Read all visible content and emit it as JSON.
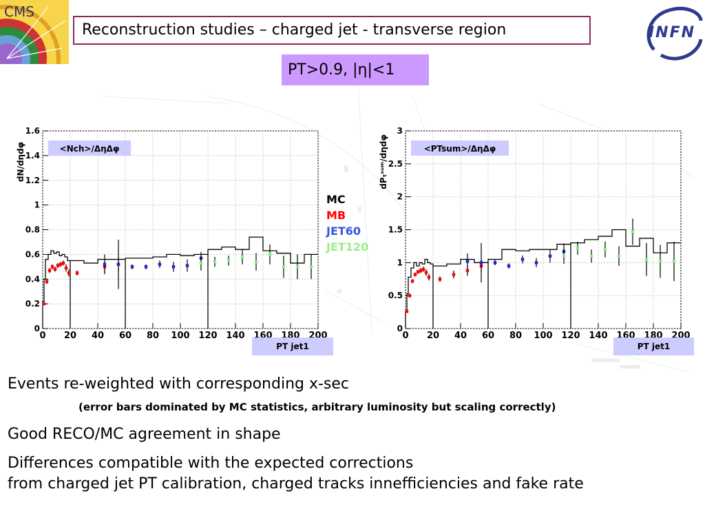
{
  "title": "Reconstruction studies – charged jet - transverse region",
  "cut_label": "PT>0.9, |η|<1",
  "logos": {
    "left": "CMS",
    "right": "INFN"
  },
  "legend": {
    "mc": "MC",
    "mb": "MB",
    "jet60": "JET60",
    "jet120": "JET120"
  },
  "colors": {
    "mc": "#000000",
    "mb": "#ff0000",
    "jet60": "#2222cc",
    "jet120": "#88ee88",
    "title_border": "#8a2a5a",
    "cut_bg": "#cc99ff",
    "tag_bg": "#ccccff"
  },
  "texts": {
    "line1": "Events re-weighted with corresponding x-sec",
    "line2": "(error bars dominated by MC statistics, arbitrary luminosity but scaling correctly)",
    "line3": "Good RECO/MC  agreement in shape",
    "line4": "Differences compatible with the expected corrections",
    "line5": "from charged jet PT calibration, charged tracks innefficiencies and fake rate"
  },
  "chart_data": [
    {
      "type": "histogram+errorbars",
      "inner_label": "<Nch>/ΔηΔφ",
      "ylabel": "dN/dηdφ",
      "xlabel": "PT jet1",
      "xlim": [
        0,
        200
      ],
      "ylim": [
        0,
        1.6
      ],
      "xticks": [
        0,
        20,
        40,
        60,
        80,
        100,
        120,
        140,
        160,
        180,
        200
      ],
      "yticks": [
        0,
        0.2,
        0.4,
        0.6,
        0.8,
        1,
        1.2,
        1.4,
        1.6
      ],
      "grid": true,
      "mc_hist": {
        "edges": [
          0,
          1,
          2,
          4,
          6,
          8,
          10,
          12,
          14,
          16,
          18,
          20,
          30,
          40,
          50,
          60,
          70,
          80,
          90,
          100,
          110,
          120,
          130,
          140,
          150,
          160,
          170,
          180,
          190,
          200
        ],
        "values": [
          0.22,
          0.4,
          0.56,
          0.6,
          0.63,
          0.61,
          0.62,
          0.59,
          0.6,
          0.58,
          0.55,
          0.55,
          0.53,
          0.56,
          0.56,
          0.57,
          0.57,
          0.58,
          0.6,
          0.59,
          0.6,
          0.64,
          0.66,
          0.64,
          0.74,
          0.63,
          0.61,
          0.53,
          0.6
        ],
        "gaps_to_zero_at": [
          20,
          60,
          120
        ]
      },
      "series": [
        {
          "name": "MB",
          "color_key": "mb",
          "points": [
            [
              1,
              0.2,
              0.01
            ],
            [
              3,
              0.38,
              0.02
            ],
            [
              5,
              0.47,
              0.02
            ],
            [
              7,
              0.5,
              0.02
            ],
            [
              9,
              0.48,
              0.02
            ],
            [
              11,
              0.51,
              0.02
            ],
            [
              13,
              0.52,
              0.02
            ],
            [
              15,
              0.53,
              0.02
            ],
            [
              17,
              0.49,
              0.03
            ],
            [
              19,
              0.45,
              0.03
            ],
            [
              25,
              0.45,
              0.02
            ],
            [
              45,
              0.5,
              0.05
            ],
            [
              55,
              0.52,
              0.06
            ]
          ]
        },
        {
          "name": "JET60",
          "color_key": "jet60",
          "points": [
            [
              45,
              0.52,
              0.08
            ],
            [
              55,
              0.52,
              0.2
            ],
            [
              65,
              0.5,
              0.02
            ],
            [
              75,
              0.5,
              0.02
            ],
            [
              85,
              0.52,
              0.03
            ],
            [
              95,
              0.5,
              0.04
            ],
            [
              105,
              0.51,
              0.05
            ],
            [
              115,
              0.57,
              0.05
            ]
          ]
        },
        {
          "name": "JET120",
          "color_key": "jet120",
          "points": [
            [
              115,
              0.53,
              0.06
            ],
            [
              125,
              0.54,
              0.04
            ],
            [
              135,
              0.55,
              0.04
            ],
            [
              145,
              0.58,
              0.06
            ],
            [
              155,
              0.54,
              0.07
            ],
            [
              165,
              0.6,
              0.08
            ],
            [
              175,
              0.5,
              0.09
            ],
            [
              185,
              0.5,
              0.1
            ],
            [
              195,
              0.5,
              0.1
            ]
          ]
        }
      ]
    },
    {
      "type": "histogram+errorbars",
      "inner_label": "<PTsum>/ΔηΔφ",
      "ylabel": "dPₜˢᵘᵐ/dηdφ",
      "xlabel": "PT jet1",
      "xlim": [
        0,
        200
      ],
      "ylim": [
        0,
        3
      ],
      "xticks": [
        0,
        20,
        40,
        60,
        80,
        100,
        120,
        140,
        160,
        180,
        200
      ],
      "yticks": [
        0,
        0.5,
        1,
        1.5,
        2,
        2.5,
        3
      ],
      "grid": true,
      "mc_hist": {
        "edges": [
          0,
          1,
          2,
          4,
          6,
          8,
          10,
          12,
          14,
          16,
          18,
          20,
          30,
          40,
          50,
          60,
          70,
          80,
          90,
          100,
          110,
          120,
          130,
          140,
          150,
          160,
          170,
          180,
          190,
          200
        ],
        "values": [
          0.26,
          0.53,
          0.78,
          0.92,
          1.0,
          0.95,
          1.0,
          0.98,
          1.05,
          1.0,
          0.98,
          0.95,
          0.98,
          1.05,
          1.0,
          1.05,
          1.2,
          1.18,
          1.2,
          1.2,
          1.28,
          1.3,
          1.35,
          1.4,
          1.5,
          1.25,
          1.37,
          1.15,
          1.3
        ],
        "gaps_to_zero_at": [
          20,
          60,
          120
        ]
      },
      "series": [
        {
          "name": "MB",
          "color_key": "mb",
          "points": [
            [
              1,
              0.26,
              0.02
            ],
            [
              3,
              0.5,
              0.03
            ],
            [
              5,
              0.72,
              0.03
            ],
            [
              7,
              0.82,
              0.03
            ],
            [
              9,
              0.86,
              0.03
            ],
            [
              11,
              0.88,
              0.04
            ],
            [
              13,
              0.9,
              0.04
            ],
            [
              15,
              0.85,
              0.05
            ],
            [
              17,
              0.78,
              0.05
            ],
            [
              25,
              0.75,
              0.04
            ],
            [
              35,
              0.82,
              0.06
            ],
            [
              45,
              0.88,
              0.08
            ],
            [
              55,
              0.95,
              0.1
            ]
          ]
        },
        {
          "name": "JET60",
          "color_key": "jet60",
          "points": [
            [
              45,
              1.02,
              0.12
            ],
            [
              55,
              1.0,
              0.3
            ],
            [
              65,
              1.0,
              0.04
            ],
            [
              75,
              0.95,
              0.04
            ],
            [
              85,
              1.05,
              0.06
            ],
            [
              95,
              1.0,
              0.07
            ],
            [
              105,
              1.1,
              0.1
            ],
            [
              115,
              1.17,
              0.12
            ]
          ]
        },
        {
          "name": "JET120",
          "color_key": "jet120",
          "points": [
            [
              115,
              1.1,
              0.12
            ],
            [
              125,
              1.22,
              0.1
            ],
            [
              135,
              1.1,
              0.1
            ],
            [
              145,
              1.2,
              0.12
            ],
            [
              155,
              1.1,
              0.15
            ],
            [
              165,
              1.47,
              0.2
            ],
            [
              175,
              1.05,
              0.25
            ],
            [
              185,
              1.02,
              0.25
            ],
            [
              195,
              1.02,
              0.3
            ]
          ]
        }
      ]
    }
  ]
}
